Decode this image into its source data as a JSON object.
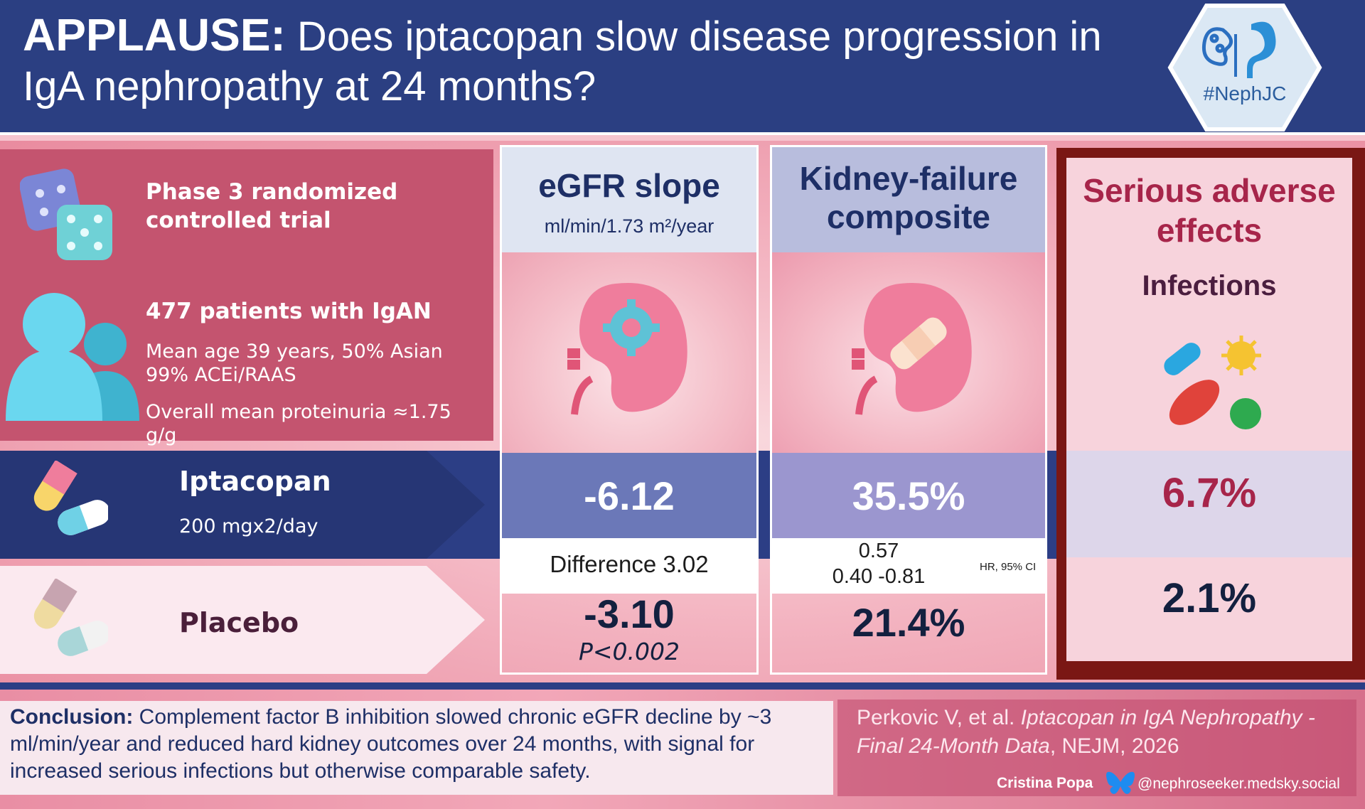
{
  "header": {
    "title_bold": "APPLAUSE:",
    "title_rest": " Does iptacopan slow disease progression in IgA nephropathy at 24 months?",
    "logo_text": "#NephJC"
  },
  "trial": {
    "design": "Phase 3 randomized controlled trial",
    "patients": "477 patients with IgAN",
    "age": "Mean age 39 years, 50% Asian",
    "acei": "99% ACEi/RAAS",
    "proteinuria": "Overall mean proteinuria ≈1.75 g/g"
  },
  "arms": {
    "iptacopan_name": "Iptacopan",
    "iptacopan_dose": "200 mgx2/day",
    "placebo_name": "Placebo"
  },
  "egfr": {
    "title": "eGFR slope",
    "unit": "ml/min/1.73 m²/year",
    "iptacopan_value": "-6.12",
    "difference": "Difference 3.02",
    "placebo_value": "-3.10",
    "p_value": "P<0.002"
  },
  "kidney": {
    "title_line1": "Kidney-failure",
    "title_line2": "composite",
    "iptacopan_value": "35.5%",
    "hr": "0.57",
    "ci": "0.40 -0.81",
    "hr_label": "HR, 95% CI",
    "placebo_value": "21.4%"
  },
  "sae": {
    "title_line1": "Serious adverse",
    "title_line2": "effects",
    "subtitle": "Infections",
    "iptacopan_value": "6.7%",
    "placebo_value": "2.1%"
  },
  "footer": {
    "conclusion_label": "Conclusion:",
    "conclusion_text": " Complement factor B inhibition slowed chronic eGFR decline by ~3 ml/min/year and reduced hard kidney outcomes over 24 months, with signal for increased serious infections but otherwise comparable safety.",
    "citation_authors": "Perkovic V, et al. ",
    "citation_title": "Iptacopan in IgA Nephropathy - Final 24-Month Data",
    "citation_journal": ", NEJM, 2026",
    "author": "Cristina Popa",
    "handle": "@nephroseeker.medsky.social"
  },
  "colors": {
    "navy": "#2c3e85",
    "rose": "#c4546f",
    "maroon": "#7a1714",
    "accent_red": "#a7254a"
  }
}
